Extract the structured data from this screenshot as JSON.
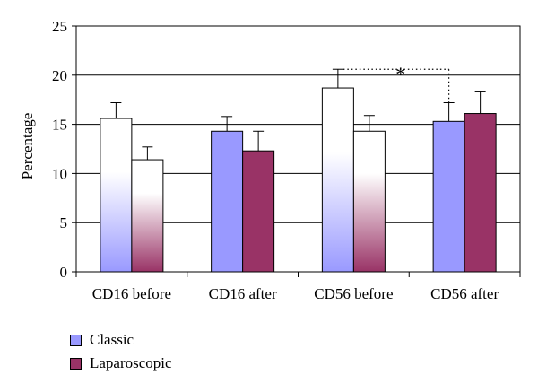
{
  "chart_data": {
    "type": "bar",
    "categories": [
      "CD16 before",
      "CD16 after",
      "CD56 before",
      "CD56 after"
    ],
    "series": [
      {
        "name": "Classic",
        "color": "#9999ff",
        "values": [
          15.6,
          14.3,
          18.7,
          15.3
        ],
        "errors": [
          1.6,
          1.5,
          1.9,
          1.9
        ]
      },
      {
        "name": "Laparoscopic",
        "color": "#993366",
        "values": [
          11.4,
          12.3,
          14.3,
          16.1
        ],
        "errors": [
          1.3,
          2.0,
          1.6,
          2.2
        ]
      }
    ],
    "gradient_fill": [
      true,
      false,
      true,
      false
    ],
    "ylabel": "Percentage",
    "ylim": [
      0,
      25
    ],
    "yticks": [
      0,
      5,
      10,
      15,
      20,
      25
    ],
    "grid": true,
    "legend_placement": "bottom-left",
    "annotation": {
      "text": "*",
      "from_category": "CD56 before",
      "to_category": "CD56 after",
      "series": "Classic"
    }
  }
}
